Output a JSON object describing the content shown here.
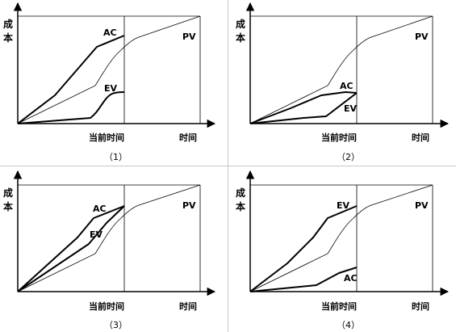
{
  "axis_labels": {
    "y": "成本",
    "time": "时间",
    "now": "当前时间"
  },
  "series_labels": {
    "pv": "PV",
    "ac": "AC",
    "ev": "EV"
  },
  "panels": [
    {
      "caption": "（1）"
    },
    {
      "caption": "（2）"
    },
    {
      "caption": "（3）"
    },
    {
      "caption": "（4）"
    }
  ]
}
